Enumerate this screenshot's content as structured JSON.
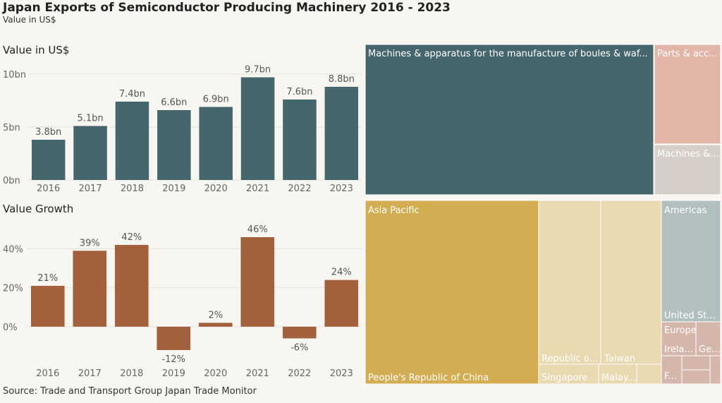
{
  "header": {
    "title": "Japan Exports of Semiconductor Producing Machinery 2016 - 2023",
    "subtitle": "Value in US$",
    "source": "Source: Trade and Transport Group Japan Trade Monitor"
  },
  "chart_data": [
    {
      "type": "bar",
      "title": "Value in US$",
      "categories": [
        "2016",
        "2017",
        "2018",
        "2019",
        "2020",
        "2021",
        "2022",
        "2023"
      ],
      "values": [
        3.8,
        5.1,
        7.4,
        6.6,
        6.9,
        9.7,
        7.6,
        8.8
      ],
      "data_labels": [
        "3.8bn",
        "5.1bn",
        "7.4bn",
        "6.6bn",
        "6.9bn",
        "9.7bn",
        "7.6bn",
        "8.8bn"
      ],
      "ylim": [
        0,
        10
      ],
      "yticks": [
        0,
        5,
        10
      ],
      "ytick_labels": [
        "0bn",
        "5bn",
        "10bn"
      ],
      "color": "#46666d",
      "grid": true
    },
    {
      "type": "bar",
      "title": "Value Growth",
      "categories": [
        "2016",
        "2017",
        "2018",
        "2019",
        "2020",
        "2021",
        "2022",
        "2023"
      ],
      "values": [
        21,
        39,
        42,
        -12,
        2,
        46,
        -6,
        24
      ],
      "data_labels": [
        "21%",
        "39%",
        "42%",
        "-12%",
        "2%",
        "46%",
        "-6%",
        "24%"
      ],
      "ylim": [
        -12,
        46
      ],
      "yticks": [
        0,
        20,
        40
      ],
      "ytick_labels": [
        "0%",
        "20%",
        "40%"
      ],
      "color": "#a2603c",
      "grid": true
    },
    {
      "type": "treemap",
      "items": [
        {
          "label": "Machines & apparatus for the manufacture of boules & waf...",
          "color": "#46666d"
        },
        {
          "label": "Parts & acc...",
          "color": "#e3b5a9"
        },
        {
          "label": "Machines &...",
          "color": "#d5cfc7"
        }
      ]
    },
    {
      "type": "treemap",
      "groups": [
        {
          "label": "Asia Pacific",
          "color": "#d2ad51",
          "items": [
            {
              "label": "People's Republic of China",
              "color": "#d2ad51"
            },
            {
              "label": "Republic o...",
              "color": "#e8d9b1"
            },
            {
              "label": "Taiwan",
              "color": "#e8d9b1"
            },
            {
              "label": "Singapore",
              "color": "#e8d9b1"
            },
            {
              "label": "Malay...",
              "color": "#e8d9b1"
            }
          ]
        },
        {
          "label": "Americas",
          "color": "#b2bfbf",
          "items": [
            {
              "label": "United St...",
              "color": "#b2bfbf"
            }
          ]
        },
        {
          "label": "Europe",
          "color": "#d5b6aa",
          "items": [
            {
              "label": "Irela...",
              "color": "#d5b6aa"
            },
            {
              "label": "Ge...",
              "color": "#d5b6aa"
            },
            {
              "label": "F...",
              "color": "#d5b6aa"
            }
          ]
        }
      ]
    }
  ]
}
